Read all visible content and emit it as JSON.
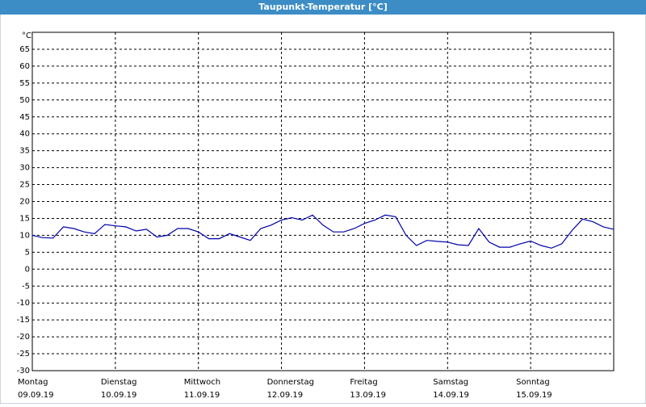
{
  "chart_data": {
    "type": "line",
    "title": "Taupunkt-Temperatur [°C]",
    "y_unit": "°C",
    "days": [
      {
        "weekday": "Montag",
        "date": "09.09.19"
      },
      {
        "weekday": "Dienstag",
        "date": "10.09.19"
      },
      {
        "weekday": "Mittwoch",
        "date": "11.09.19"
      },
      {
        "weekday": "Donnerstag",
        "date": "12.09.19"
      },
      {
        "weekday": "Freitag",
        "date": "13.09.19"
      },
      {
        "weekday": "Samstag",
        "date": "14.09.19"
      },
      {
        "weekday": "Sonntag",
        "date": "15.09.19"
      }
    ],
    "values": [
      10,
      9.3,
      9.2,
      12.5,
      12,
      11,
      10.5,
      13.2,
      12.8,
      12.5,
      11.3,
      11.8,
      9.5,
      10,
      12,
      12,
      11,
      9,
      9,
      10.5,
      9.5,
      8.5,
      12,
      13,
      14.5,
      15.2,
      14.5,
      16,
      13,
      11,
      11,
      12,
      13.5,
      14.5,
      16,
      15.5,
      10,
      7,
      8.5,
      8.2,
      8,
      7.2,
      7,
      12,
      8,
      6.5,
      6.5,
      7.5,
      8.3,
      7,
      6.2,
      7.5,
      11.5,
      14.8,
      14,
      12.5,
      11.8
    ],
    "color": "#0000aa",
    "ylim": [
      -30,
      70
    ],
    "yticks": [
      -30,
      -25,
      -20,
      -15,
      -10,
      -5,
      0,
      5,
      10,
      15,
      20,
      25,
      30,
      35,
      40,
      45,
      50,
      55,
      60,
      65
    ],
    "grid": true
  }
}
